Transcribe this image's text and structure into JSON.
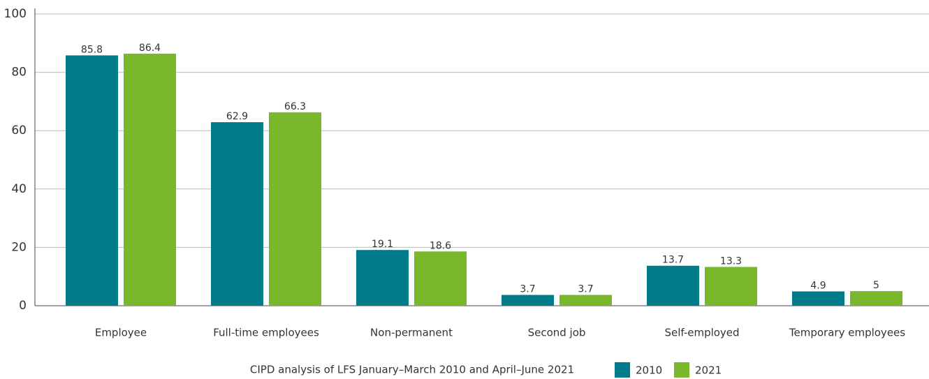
{
  "chart_data": {
    "type": "bar",
    "categories": [
      "Employee",
      "Full-time employees",
      "Non-permanent",
      "Second job",
      "Self-employed",
      "Temporary employees"
    ],
    "series": [
      {
        "name": "2010",
        "color": "#007b8a",
        "values": [
          85.8,
          62.9,
          19.1,
          3.7,
          13.7,
          4.9
        ]
      },
      {
        "name": "2021",
        "color": "#78b82a",
        "values": [
          86.4,
          66.3,
          18.6,
          3.7,
          13.3,
          5
        ]
      }
    ],
    "ylim": [
      0,
      100
    ],
    "yticks": [
      0,
      20,
      40,
      60,
      80,
      100
    ],
    "grid": true,
    "source": "CIPD analysis of LFS January–March 2010 and April–June 2021"
  }
}
